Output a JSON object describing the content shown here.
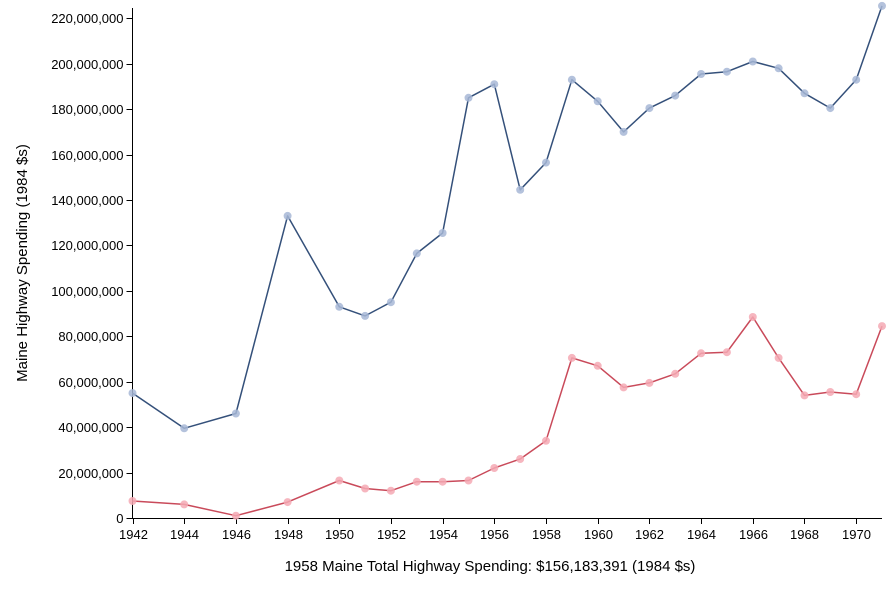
{
  "chart_data": {
    "type": "line",
    "xlabel": "1958 Maine Total Highway Spending: $156,183,391 (1984 $s)",
    "ylabel": "Maine Highway Spending (1984 $s)",
    "xlim": [
      1942,
      1971
    ],
    "ylim": [
      0,
      225000000
    ],
    "x_ticks": [
      "1942",
      "1944",
      "1946",
      "1948",
      "1950",
      "1952",
      "1954",
      "1956",
      "1958",
      "1960",
      "1962",
      "1964",
      "1966",
      "1968",
      "1970"
    ],
    "y_ticks": [
      "0",
      "20,000,000",
      "40,000,000",
      "60,000,000",
      "80,000,000",
      "100,000,000",
      "120,000,000",
      "140,000,000",
      "160,000,000",
      "180,000,000",
      "200,000,000",
      "220,000,000"
    ],
    "grid": false,
    "series": [
      {
        "color": "#34507a",
        "point_color": "#a7b7d6",
        "x": [
          1942,
          1944,
          1946,
          1948,
          1950,
          1951,
          1952,
          1953,
          1954,
          1955,
          1956,
          1957,
          1958,
          1959,
          1960,
          1961,
          1962,
          1963,
          1964,
          1965,
          1966,
          1967,
          1968,
          1969,
          1970,
          1971
        ],
        "values": [
          55000000,
          39500000,
          46000000,
          133000000,
          93000000,
          89000000,
          95000000,
          116500000,
          125500000,
          185000000,
          191000000,
          144500000,
          156500000,
          193000000,
          183500000,
          170000000,
          180500000,
          186000000,
          195500000,
          196500000,
          201000000,
          198000000,
          187000000,
          180500000,
          193000000,
          225500000
        ]
      },
      {
        "color": "#c94a5a",
        "point_color": "#f5a9b4",
        "x": [
          1942,
          1944,
          1946,
          1948,
          1950,
          1951,
          1952,
          1953,
          1954,
          1955,
          1956,
          1957,
          1958,
          1959,
          1960,
          1961,
          1962,
          1963,
          1964,
          1965,
          1966,
          1967,
          1968,
          1969,
          1970,
          1971
        ],
        "values": [
          7500000,
          6000000,
          1000000,
          7000000,
          16500000,
          13000000,
          12000000,
          16000000,
          16000000,
          16500000,
          22000000,
          26000000,
          34000000,
          70500000,
          67000000,
          57500000,
          59500000,
          63500000,
          72500000,
          73000000,
          88500000,
          70500000,
          54000000,
          55500000,
          54500000,
          84500000
        ]
      }
    ]
  }
}
